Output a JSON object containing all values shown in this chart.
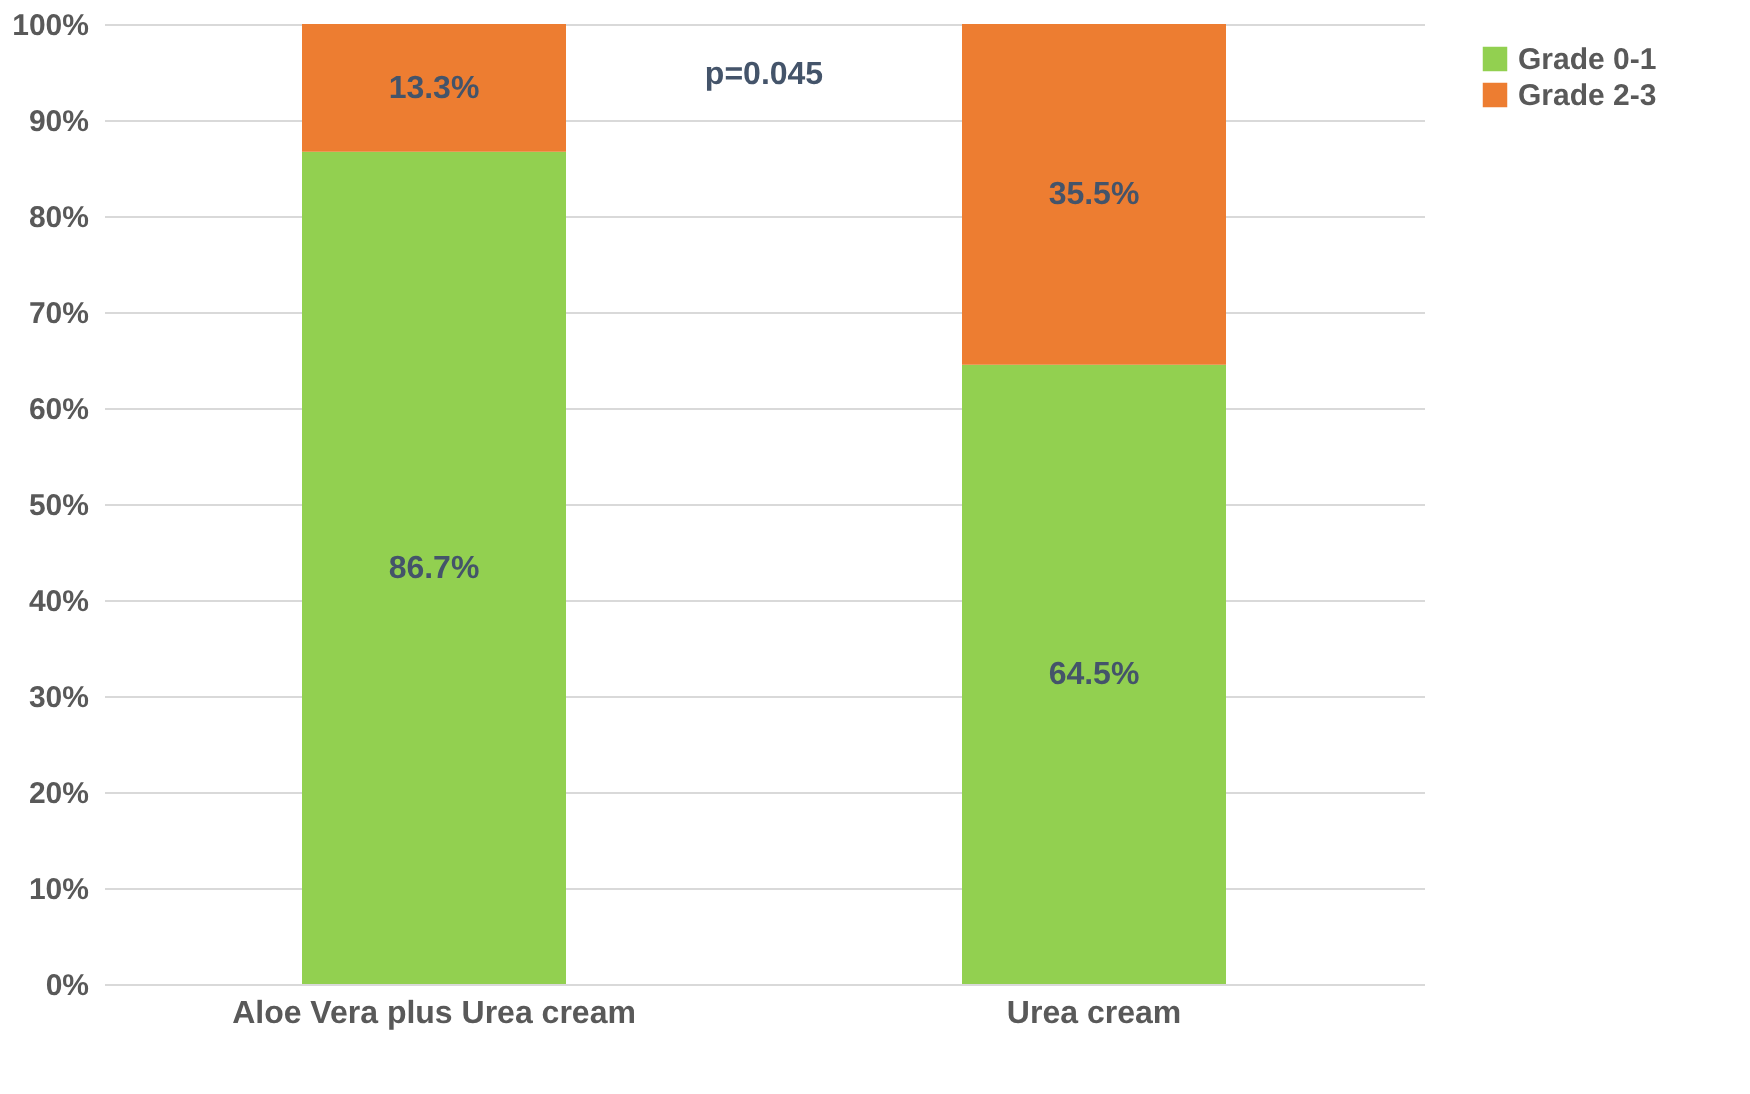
{
  "chart_data": {
    "type": "bar",
    "stacked": true,
    "categories": [
      "Aloe Vera plus Urea cream",
      "Urea cream"
    ],
    "series": [
      {
        "name": "Grade 0-1",
        "color": "#92d050",
        "values": [
          86.7,
          64.5
        ],
        "value_labels": [
          "86.7%",
          "64.5%"
        ]
      },
      {
        "name": "Grade 2-3",
        "color": "#ed7d31",
        "values": [
          13.3,
          35.5
        ],
        "value_labels": [
          "13.3%",
          "35.5%"
        ]
      }
    ],
    "ylim": [
      0,
      100
    ],
    "yticks": [
      {
        "value": 0,
        "label": "0%"
      },
      {
        "value": 10,
        "label": "10%"
      },
      {
        "value": 20,
        "label": "20%"
      },
      {
        "value": 30,
        "label": "30%"
      },
      {
        "value": 40,
        "label": "40%"
      },
      {
        "value": 50,
        "label": "50%"
      },
      {
        "value": 60,
        "label": "60%"
      },
      {
        "value": 70,
        "label": "70%"
      },
      {
        "value": 80,
        "label": "80%"
      },
      {
        "value": 90,
        "label": "90%"
      },
      {
        "value": 100,
        "label": "100%"
      }
    ],
    "grid": "y",
    "legend": "right",
    "annotations": [
      "p=0.045"
    ]
  }
}
